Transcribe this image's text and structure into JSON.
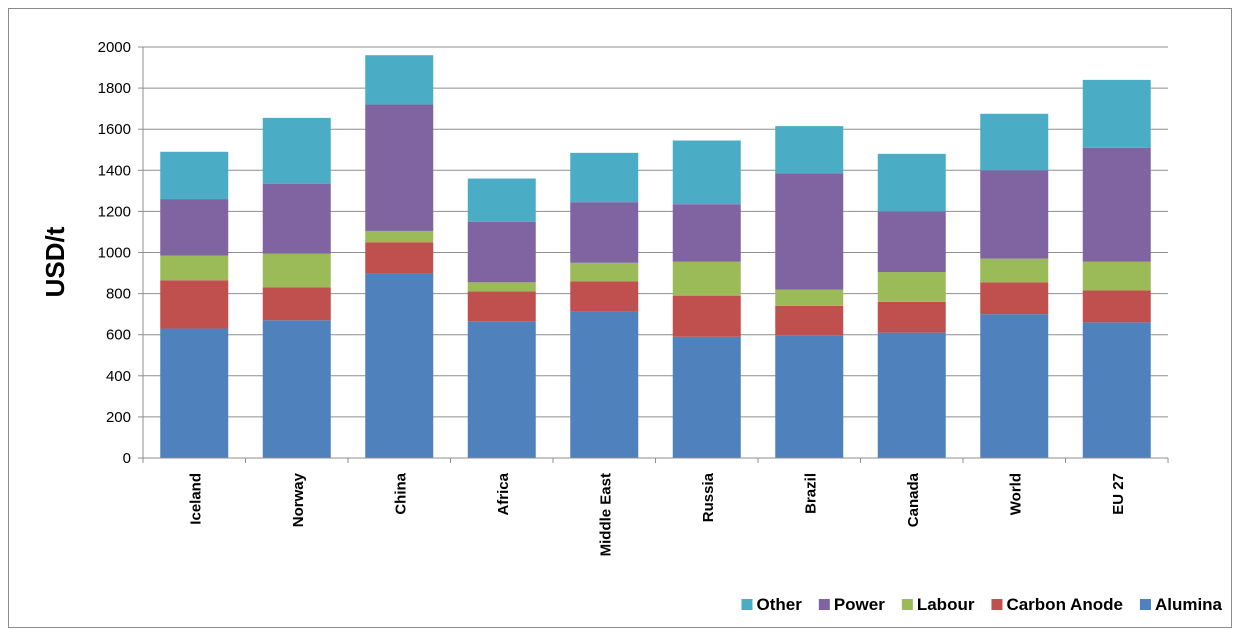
{
  "chart_data": {
    "type": "bar",
    "stacked": true,
    "title": "",
    "xlabel": "",
    "ylabel": "USD/t",
    "ylim": [
      0,
      2000
    ],
    "yticks": [
      0,
      200,
      400,
      600,
      800,
      1000,
      1200,
      1400,
      1600,
      1800,
      2000
    ],
    "grid": true,
    "legend_position": "bottom-right",
    "categories": [
      "Iceland",
      "Norway",
      "China",
      "Africa",
      "Middle East",
      "Russia",
      "Brazil",
      "Canada",
      "World",
      "EU 27"
    ],
    "series": [
      {
        "name": "Alumina",
        "color": "#4f81bd",
        "values": [
          630,
          670,
          900,
          665,
          715,
          590,
          595,
          610,
          700,
          660
        ]
      },
      {
        "name": "Carbon Anode",
        "color": "#c0504d",
        "values": [
          235,
          160,
          150,
          145,
          145,
          200,
          145,
          150,
          155,
          155
        ]
      },
      {
        "name": "Labour",
        "color": "#9bbb59",
        "values": [
          120,
          165,
          55,
          45,
          90,
          165,
          80,
          145,
          115,
          140
        ]
      },
      {
        "name": "Power",
        "color": "#8064a2",
        "values": [
          275,
          340,
          615,
          295,
          295,
          280,
          565,
          295,
          430,
          555
        ]
      },
      {
        "name": "Other",
        "color": "#4bacc6",
        "values": [
          230,
          320,
          240,
          210,
          240,
          310,
          230,
          280,
          275,
          330
        ]
      }
    ],
    "legend_order": [
      "Other",
      "Power",
      "Labour",
      "Carbon Anode",
      "Alumina"
    ]
  }
}
